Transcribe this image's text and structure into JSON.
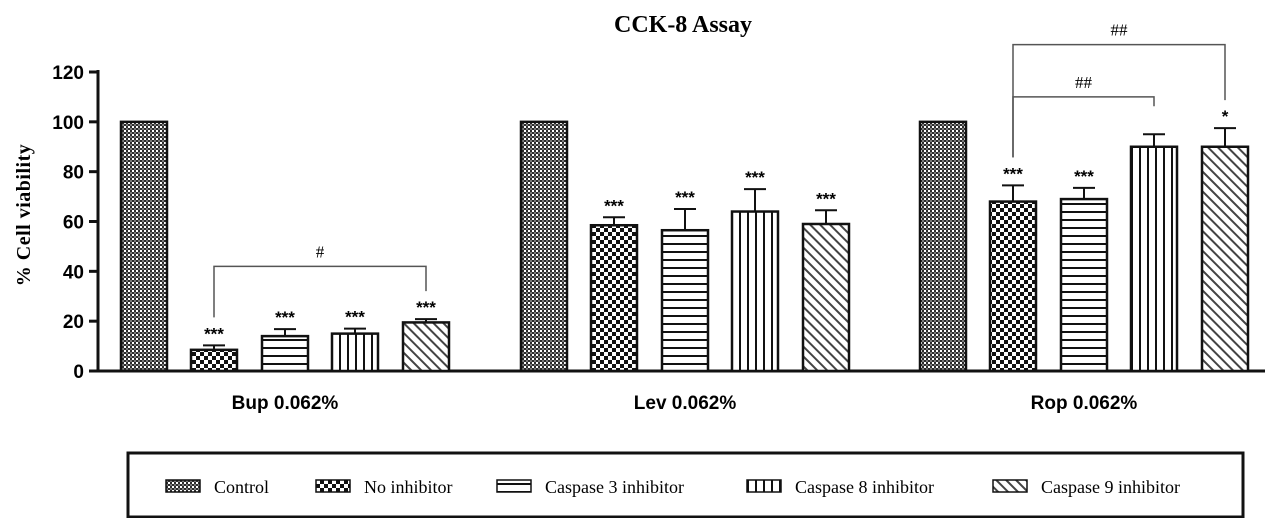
{
  "chart_data": {
    "type": "bar",
    "title": "CCK-8 Assay",
    "xlabel": "",
    "ylabel": "% Cell viability",
    "ylim": [
      0,
      120
    ],
    "yticks": [
      0,
      20,
      40,
      60,
      80,
      100,
      120
    ],
    "grid": false,
    "legend_position": "bottom",
    "categories": [
      "Bup 0.062%",
      "Lev 0.062%",
      "Rop 0.062%"
    ],
    "series": [
      {
        "name": "Control",
        "pattern": "fine-grid-dark",
        "values": [
          100,
          100,
          100
        ],
        "errors": [
          0,
          0,
          0
        ],
        "labels": [
          "",
          "",
          ""
        ]
      },
      {
        "name": "No inhibitor",
        "pattern": "checker",
        "values": [
          8.5,
          58.5,
          68
        ],
        "errors": [
          1.8,
          3.2,
          6.5
        ],
        "labels": [
          "***",
          "***",
          "***"
        ]
      },
      {
        "name": "Caspase 3 inhibitor",
        "pattern": "horizontal-lines",
        "values": [
          14,
          56.5,
          69
        ],
        "errors": [
          2.8,
          8.5,
          4.5
        ],
        "labels": [
          "***",
          "***",
          "***"
        ]
      },
      {
        "name": "Caspase 8 inhibitor",
        "pattern": "vertical-lines",
        "values": [
          15,
          64,
          90
        ],
        "errors": [
          2.0,
          9.0,
          5.0
        ],
        "labels": [
          "***",
          "***",
          ""
        ]
      },
      {
        "name": "Caspase 9 inhibitor",
        "pattern": "diagonal-lines",
        "values": [
          19.5,
          59,
          90
        ],
        "errors": [
          1.3,
          5.5,
          7.5
        ],
        "labels": [
          "***",
          "***",
          "*"
        ]
      }
    ],
    "annotations": [
      {
        "text": "#",
        "group": 0,
        "from_series": 1,
        "to_series": 4,
        "y": 42
      },
      {
        "text": "##",
        "group": 2,
        "from_series": 1,
        "to_series": 3,
        "y": 110
      },
      {
        "text": "##",
        "group": 2,
        "from_series": 1,
        "to_series": 4,
        "y": 131
      }
    ]
  }
}
